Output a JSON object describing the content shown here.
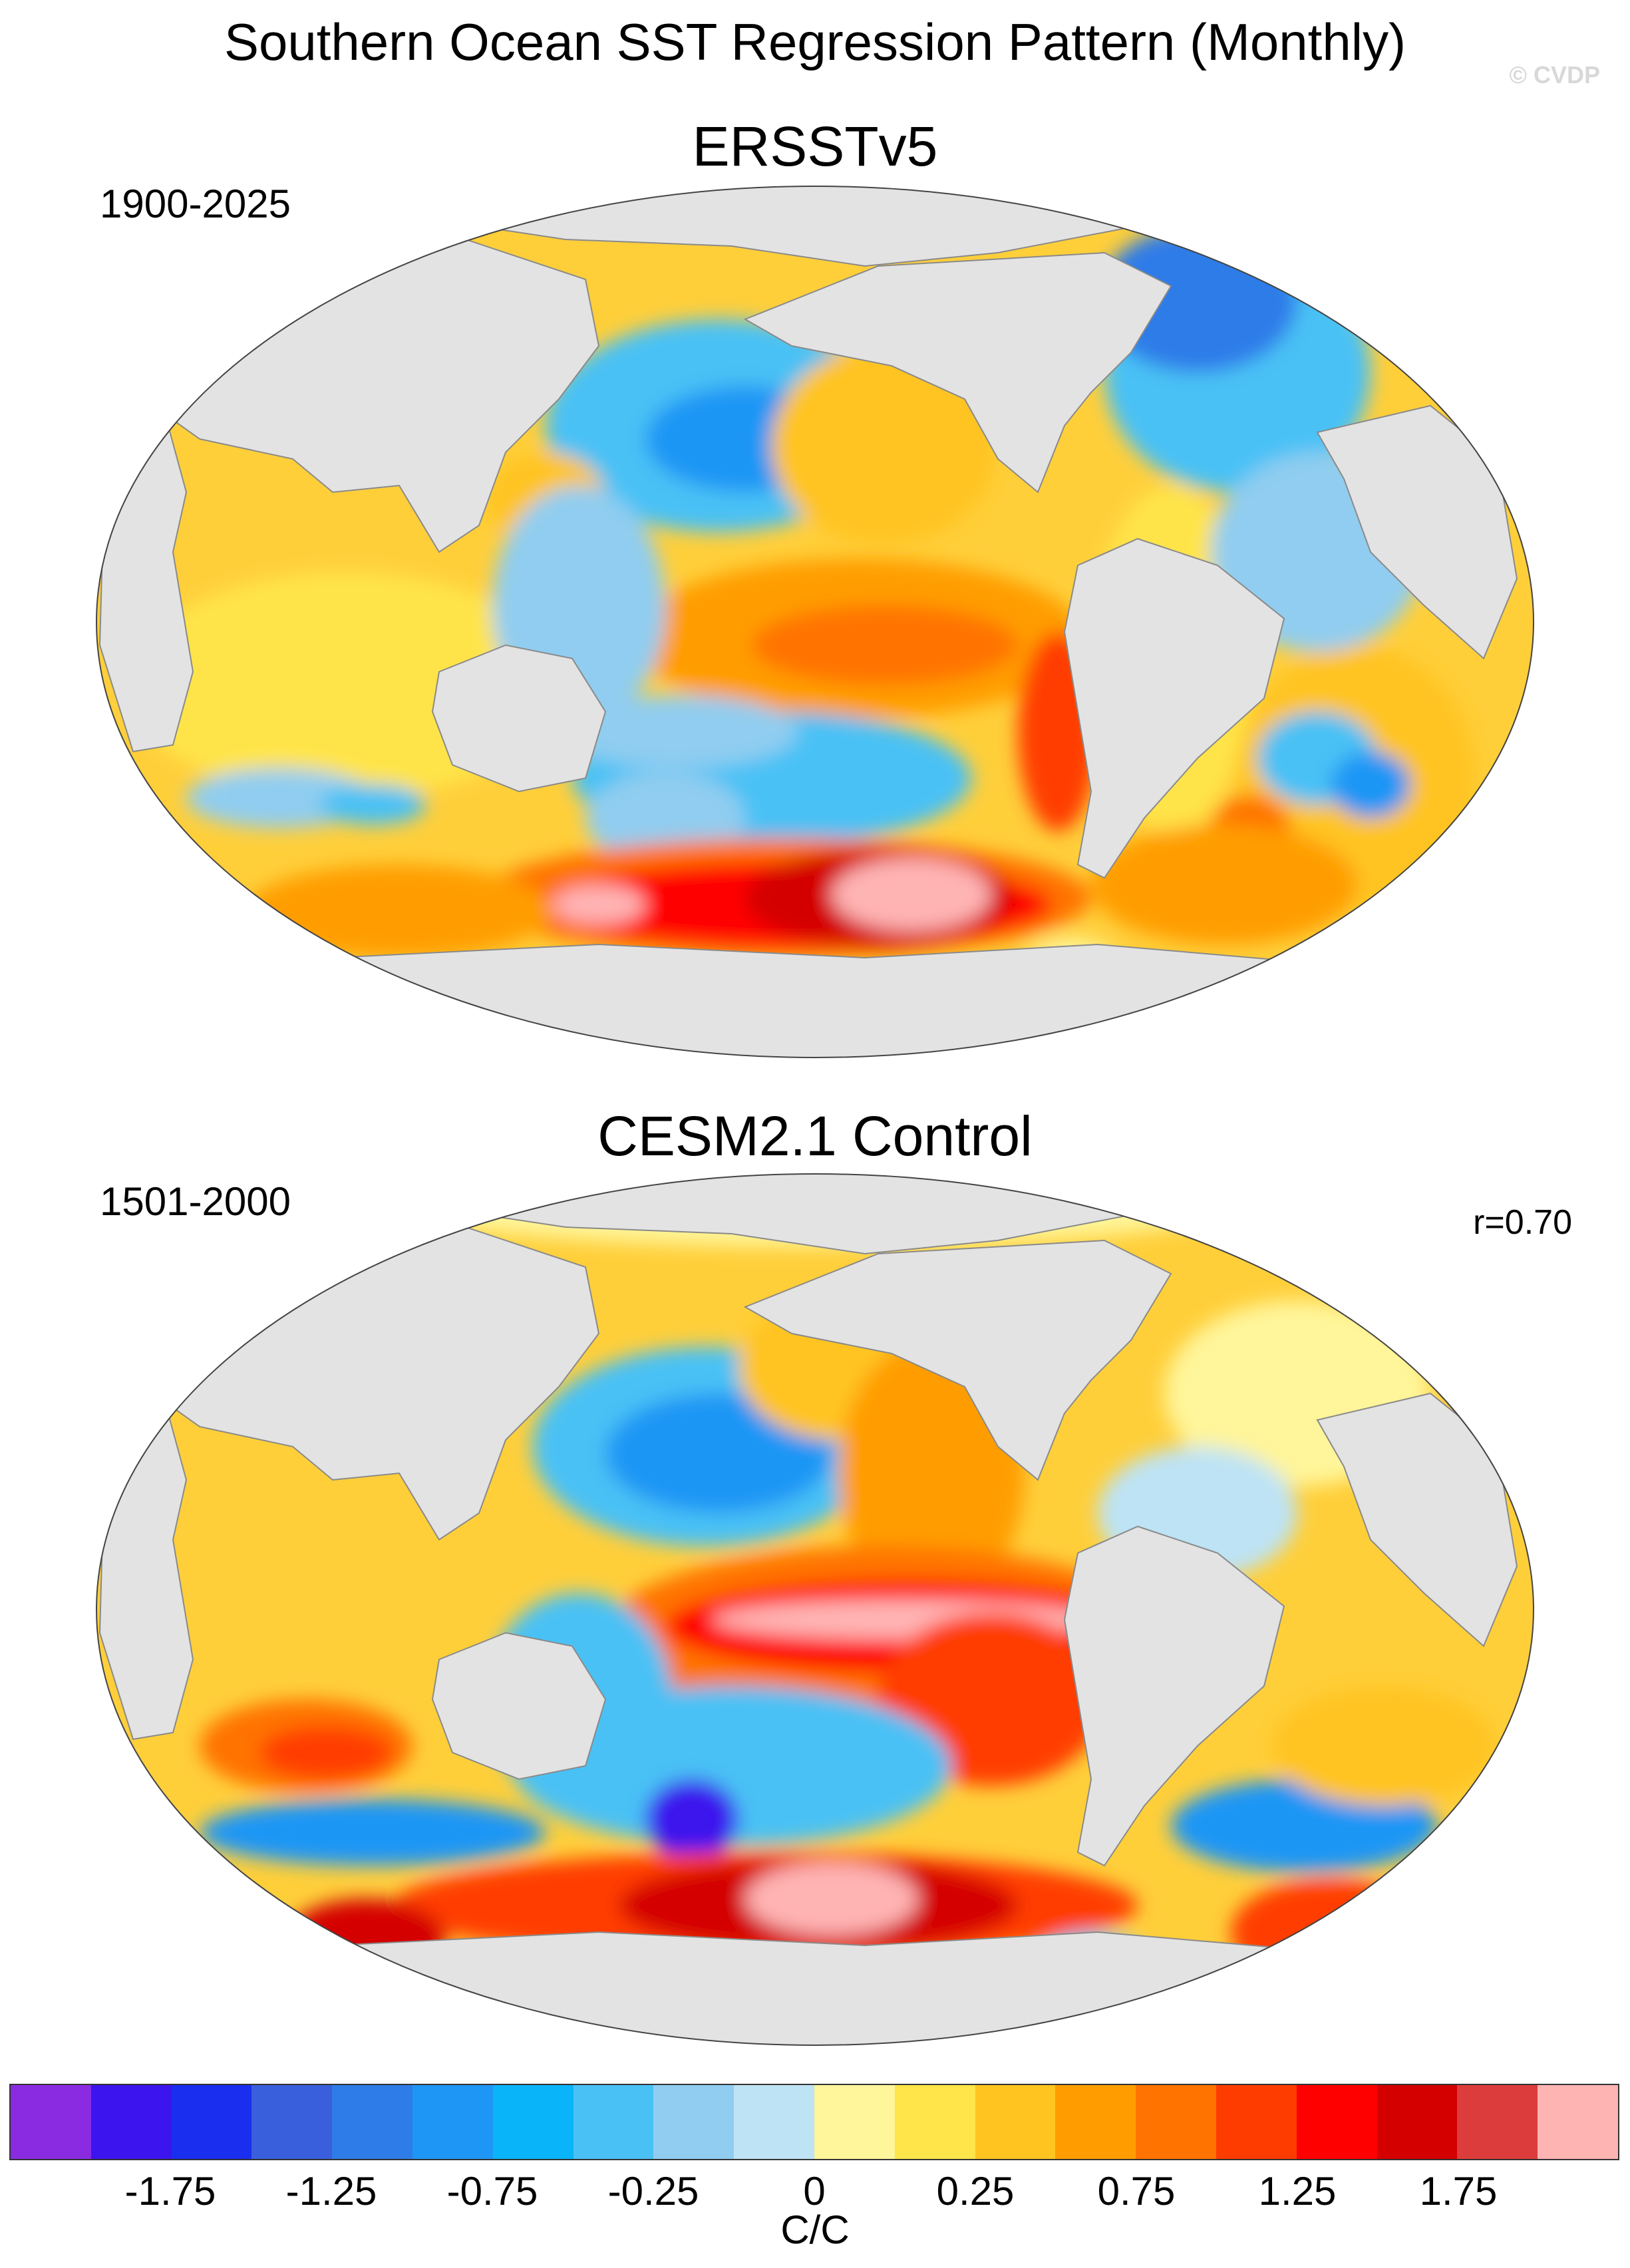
{
  "title": "Southern Ocean SST Regression Pattern (Monthly)",
  "watermark": "© CVDP",
  "panels": [
    {
      "title": "ERSSTv5",
      "period": "1900-2025",
      "correlation": ""
    },
    {
      "title": "CESM2.1 Control",
      "period": "1501-2000",
      "correlation": "r=0.70"
    }
  ],
  "colorbar": {
    "colors": [
      "#8a2be2",
      "#3c14ee",
      "#1a2ef0",
      "#3a5fdc",
      "#2e7ce8",
      "#1e96f5",
      "#0ab4f8",
      "#4ac1f5",
      "#90cdf0",
      "#bde3f5",
      "#fff59a",
      "#ffe44a",
      "#ffc420",
      "#ff9d00",
      "#ff7300",
      "#ff3c00",
      "#ff0000",
      "#d40000",
      "#dc3c3c",
      "#ffb4b4"
    ],
    "tick_labels": [
      "-1.75",
      "-1.25",
      "-0.75",
      "-0.25",
      "0",
      "0.25",
      "0.75",
      "1.25",
      "1.75"
    ],
    "units": "C/C"
  },
  "colors": {
    "land": "#e3e3e3",
    "coast": "#8a8a8a",
    "ocean_default": "#ffcf3a"
  }
}
